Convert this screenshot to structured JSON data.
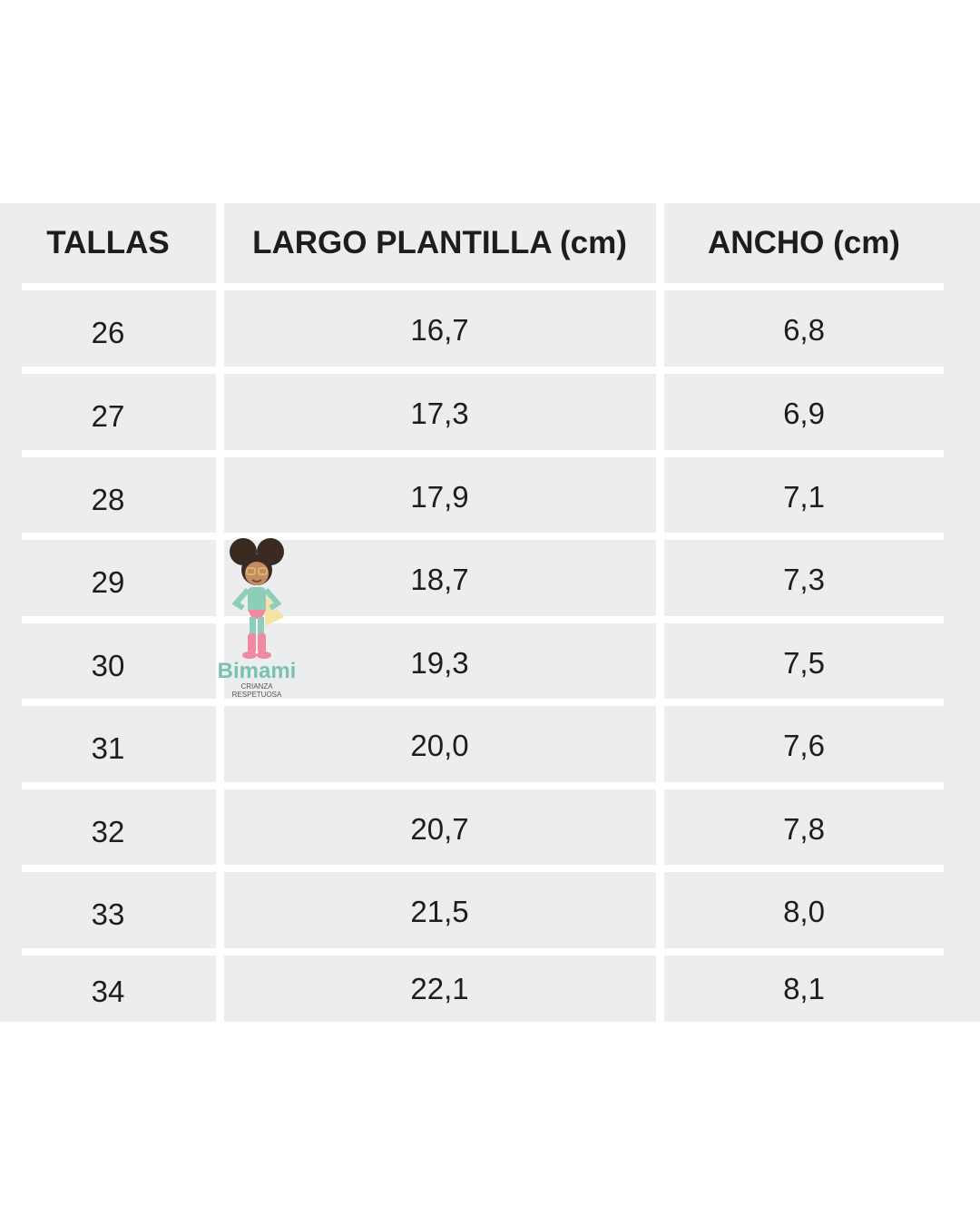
{
  "headers": [
    "TALLAS",
    "LARGO PLANTILLA (cm)",
    "ANCHO (cm)"
  ],
  "rows": [
    [
      "26",
      "16,7",
      "6,8"
    ],
    [
      "27",
      "17,3",
      "6,9"
    ],
    [
      "28",
      "17,9",
      "7,1"
    ],
    [
      "29",
      "18,7",
      "7,3"
    ],
    [
      "30",
      "19,3",
      "7,5"
    ],
    [
      "31",
      "20,0",
      "7,6"
    ],
    [
      "32",
      "20,7",
      "7,8"
    ],
    [
      "33",
      "21,5",
      "8,0"
    ],
    [
      "34",
      "22,1",
      "8,1"
    ]
  ],
  "logo": {
    "name": "Bimami",
    "tagline": "CRIANZA RESPETUOSA"
  },
  "colors": {
    "table_bg": "#ecedef",
    "separator": "#ffffff",
    "text": "#1d1d1f"
  }
}
